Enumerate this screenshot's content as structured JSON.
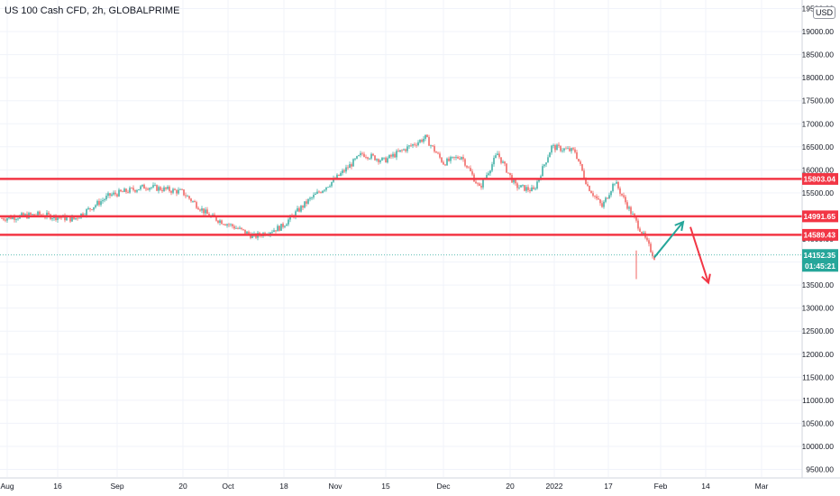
{
  "title": "US 100 Cash CFD, 2h, GLOBALPRIME",
  "currency_label": "USD",
  "colors": {
    "up": "#26a69a",
    "down": "#ef5350",
    "level": "#f23645",
    "last_price": "#26a69a",
    "grid": "#f0f3fa",
    "text": "#131722"
  },
  "chart_data": {
    "type": "candlestick",
    "title": "US 100 Cash CFD, 2h, GLOBALPRIME",
    "y_ticks": [
      "9500.00",
      "10000.00",
      "10500.00",
      "11000.00",
      "11500.00",
      "12000.00",
      "12500.00",
      "13000.00",
      "13500.00",
      "14000.00",
      "14500.00",
      "15000.00",
      "15500.00",
      "16000.00",
      "16500.00",
      "17000.00",
      "17500.00",
      "18000.00",
      "18500.00",
      "19000.00",
      "19500.00"
    ],
    "ylim": [
      9370,
      19700
    ],
    "x_ticks": [
      "Aug",
      "16",
      "Sep",
      "20",
      "Oct",
      "18",
      "Nov",
      "15",
      "Dec",
      "20",
      "2022",
      "17",
      "Feb",
      "14",
      "Mar"
    ],
    "horizontal_levels": [
      {
        "label": "15803.04",
        "value": 15803.04,
        "color": "#f23645"
      },
      {
        "label": "14991.65",
        "value": 14991.65,
        "color": "#f23645"
      },
      {
        "label": "14589.43",
        "value": 14589.43,
        "color": "#f23645"
      }
    ],
    "last_price": {
      "label": "14152.35",
      "countdown": "01:45:21",
      "value": 14152.35
    },
    "price_path": [
      {
        "i": 0,
        "close": 14950
      },
      {
        "i": 20,
        "close": 15030
      },
      {
        "i": 40,
        "close": 14930
      },
      {
        "i": 60,
        "close": 15450
      },
      {
        "i": 80,
        "close": 15640
      },
      {
        "i": 100,
        "close": 15520
      },
      {
        "i": 115,
        "close": 15000
      },
      {
        "i": 128,
        "close": 14780
      },
      {
        "i": 140,
        "close": 14550
      },
      {
        "i": 155,
        "close": 14760
      },
      {
        "i": 170,
        "close": 15330
      },
      {
        "i": 185,
        "close": 15800
      },
      {
        "i": 200,
        "close": 16350
      },
      {
        "i": 212,
        "close": 16200
      },
      {
        "i": 225,
        "close": 16480
      },
      {
        "i": 235,
        "close": 16700
      },
      {
        "i": 245,
        "close": 16150
      },
      {
        "i": 255,
        "close": 16300
      },
      {
        "i": 265,
        "close": 15600
      },
      {
        "i": 275,
        "close": 16350
      },
      {
        "i": 285,
        "close": 15650
      },
      {
        "i": 295,
        "close": 15550
      },
      {
        "i": 305,
        "close": 16500
      },
      {
        "i": 318,
        "close": 16400
      },
      {
        "i": 325,
        "close": 15650
      },
      {
        "i": 333,
        "close": 15200
      },
      {
        "i": 340,
        "close": 15750
      },
      {
        "i": 348,
        "close": 15150
      },
      {
        "i": 355,
        "close": 14650
      },
      {
        "i": 362,
        "close": 14100
      }
    ],
    "arrows": [
      {
        "color": "#26a69a",
        "from": {
          "i": 362,
          "value": 14100
        },
        "to": {
          "i": 378,
          "value": 14870
        }
      },
      {
        "color": "#f23645",
        "from": {
          "i": 382,
          "value": 14760
        },
        "to": {
          "i": 392,
          "value": 13550
        }
      }
    ]
  }
}
